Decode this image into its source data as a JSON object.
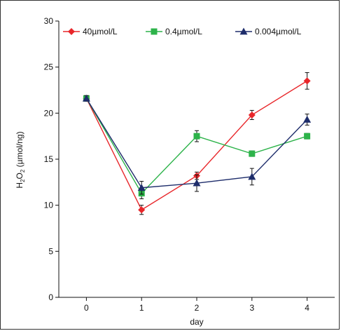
{
  "chart_data": {
    "type": "line",
    "xlabel": "day",
    "ylabel_parts": {
      "h": "H",
      "sub1": "2",
      "o": "O",
      "sub2": "2",
      "rest": " (µmol/ng)"
    },
    "x": [
      0,
      1,
      2,
      3,
      4
    ],
    "xlim": [
      -0.5,
      4.5
    ],
    "ylim": [
      0,
      30
    ],
    "yticks": [
      0,
      5,
      10,
      15,
      20,
      25,
      30
    ],
    "grid": false,
    "legend_placement": "top",
    "series": [
      {
        "name": "40µmol/L",
        "color": "#e8262a",
        "marker": "diamond",
        "values": [
          21.6,
          9.5,
          13.2,
          19.8,
          23.5
        ],
        "errors": [
          0.3,
          0.5,
          0.4,
          0.5,
          0.9
        ]
      },
      {
        "name": "0.4µmol/L",
        "color": "#2db34a",
        "marker": "square",
        "values": [
          21.6,
          11.3,
          17.5,
          15.6,
          17.5
        ],
        "errors": [
          0.3,
          0.6,
          0.6,
          0.3,
          0.3
        ]
      },
      {
        "name": "0.004µmol/L",
        "color": "#1e2d6b",
        "marker": "triangle",
        "values": [
          21.6,
          11.9,
          12.4,
          13.1,
          19.3
        ],
        "errors": [
          0.3,
          0.7,
          0.9,
          0.9,
          0.6
        ]
      }
    ]
  }
}
